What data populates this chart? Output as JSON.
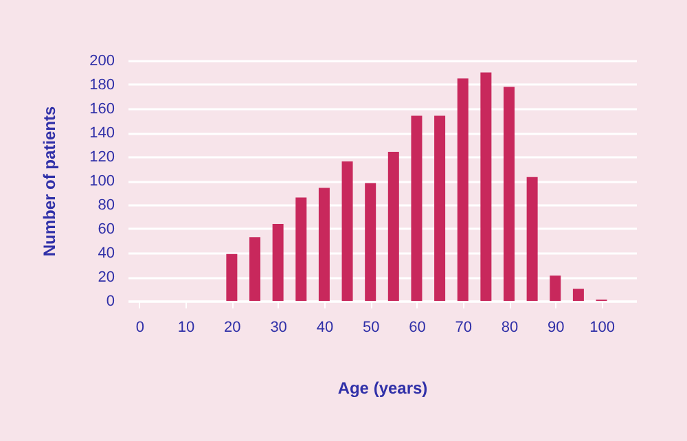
{
  "chart_data": {
    "type": "bar",
    "xlabel": "Age (years)",
    "ylabel": "Number of patients",
    "x": [
      20,
      25,
      30,
      35,
      40,
      45,
      50,
      55,
      60,
      65,
      70,
      75,
      80,
      85,
      90,
      95,
      100
    ],
    "values": [
      39,
      53,
      64,
      86,
      94,
      116,
      98,
      124,
      154,
      154,
      185,
      190,
      178,
      103,
      21,
      10,
      1
    ],
    "color": "#c8285c",
    "xlim": [
      -2.5,
      107.5
    ],
    "xticks": [
      0,
      10,
      20,
      30,
      40,
      50,
      60,
      70,
      80,
      90,
      100
    ],
    "ylim": [
      0,
      200
    ],
    "yticks": [
      0,
      20,
      40,
      60,
      80,
      100,
      120,
      140,
      160,
      180,
      200
    ],
    "grid": "y"
  }
}
